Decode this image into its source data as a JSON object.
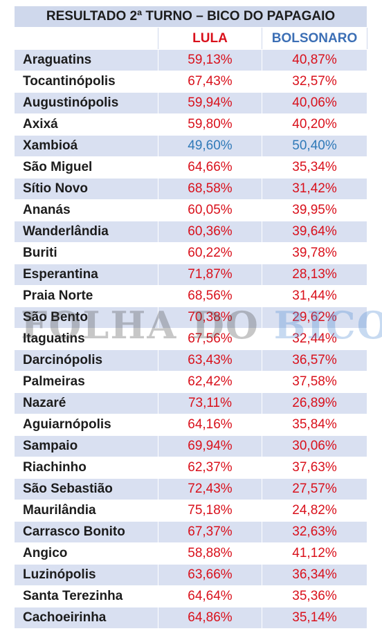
{
  "table": {
    "title": "RESULTADO 2ª TURNO – BICO DO PAPAGAIO",
    "col_lula": "LULA",
    "col_bolsonaro": "BOLSONARO",
    "rows": [
      {
        "city": "Araguatins",
        "lula": "59,13%",
        "bolsonaro": "40,87%",
        "winner": "lula"
      },
      {
        "city": "Tocantinópolis",
        "lula": "67,43%",
        "bolsonaro": "32,57%",
        "winner": "lula"
      },
      {
        "city": "Augustinópolis",
        "lula": "59,94%",
        "bolsonaro": "40,06%",
        "winner": "lula"
      },
      {
        "city": "Axixá",
        "lula": "59,80%",
        "bolsonaro": "40,20%",
        "winner": "lula"
      },
      {
        "city": "Xambioá",
        "lula": "49,60%",
        "bolsonaro": "50,40%",
        "winner": "bolsonaro"
      },
      {
        "city": "São Miguel",
        "lula": "64,66%",
        "bolsonaro": "35,34%",
        "winner": "lula"
      },
      {
        "city": "Sítio Novo",
        "lula": "68,58%",
        "bolsonaro": "31,42%",
        "winner": "lula"
      },
      {
        "city": "Ananás",
        "lula": "60,05%",
        "bolsonaro": "39,95%",
        "winner": "lula"
      },
      {
        "city": "Wanderlândia",
        "lula": "60,36%",
        "bolsonaro": "39,64%",
        "winner": "lula"
      },
      {
        "city": "Buriti",
        "lula": "60,22%",
        "bolsonaro": "39,78%",
        "winner": "lula"
      },
      {
        "city": "Esperantina",
        "lula": "71,87%",
        "bolsonaro": "28,13%",
        "winner": "lula"
      },
      {
        "city": "Praia Norte",
        "lula": "68,56%",
        "bolsonaro": "31,44%",
        "winner": "lula"
      },
      {
        "city": "São Bento",
        "lula": "70,38%",
        "bolsonaro": "29,62%",
        "winner": "lula"
      },
      {
        "city": "Itaguatins",
        "lula": "67,56%",
        "bolsonaro": "32,44%",
        "winner": "lula"
      },
      {
        "city": "Darcinópolis",
        "lula": "63,43%",
        "bolsonaro": "36,57%",
        "winner": "lula"
      },
      {
        "city": "Palmeiras",
        "lula": "62,42%",
        "bolsonaro": "37,58%",
        "winner": "lula"
      },
      {
        "city": "Nazaré",
        "lula": "73,11%",
        "bolsonaro": "26,89%",
        "winner": "lula"
      },
      {
        "city": "Aguiarnópolis",
        "lula": "64,16%",
        "bolsonaro": "35,84%",
        "winner": "lula"
      },
      {
        "city": "Sampaio",
        "lula": "69,94%",
        "bolsonaro": "30,06%",
        "winner": "lula"
      },
      {
        "city": "Riachinho",
        "lula": "62,37%",
        "bolsonaro": "37,63%",
        "winner": "lula"
      },
      {
        "city": "São Sebastião",
        "lula": "72,43%",
        "bolsonaro": "27,57%",
        "winner": "lula"
      },
      {
        "city": "Maurilândia",
        "lula": "75,18%",
        "bolsonaro": "24,82%",
        "winner": "lula"
      },
      {
        "city": "Carrasco Bonito",
        "lula": "67,37%",
        "bolsonaro": "32,63%",
        "winner": "lula"
      },
      {
        "city": "Angico",
        "lula": "58,88%",
        "bolsonaro": "41,12%",
        "winner": "lula"
      },
      {
        "city": "Luzinópolis",
        "lula": "63,66%",
        "bolsonaro": "36,34%",
        "winner": "lula"
      },
      {
        "city": "Santa Terezinha",
        "lula": "64,64%",
        "bolsonaro": "35,36%",
        "winner": "lula"
      },
      {
        "city": "Cachoeirinha",
        "lula": "64,86%",
        "bolsonaro": "35,14%",
        "winner": "lula"
      }
    ]
  },
  "watermark": {
    "part1": "FOLHA DO ",
    "part2": "BICO"
  },
  "colors": {
    "lula_red": "#d9101b",
    "bolsonaro_blue": "#3c6fb5",
    "tie_blue": "#2f79b8",
    "band": "#d9e0f1"
  }
}
